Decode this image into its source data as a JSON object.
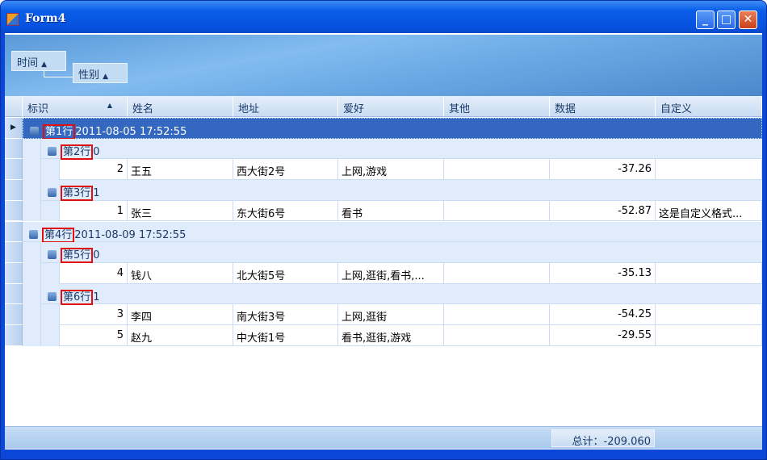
{
  "window": {
    "title": "Form4",
    "buttons": [
      "minimize",
      "maximize",
      "close"
    ]
  },
  "group_panel": {
    "chips": [
      {
        "label": "时间",
        "sort": "▲"
      },
      {
        "label": "性别",
        "sort": "▲"
      }
    ]
  },
  "columns": [
    {
      "label": "标识",
      "sort": "▲"
    },
    {
      "label": "姓名"
    },
    {
      "label": "地址"
    },
    {
      "label": "爱好"
    },
    {
      "label": "其他"
    },
    {
      "label": "数据"
    },
    {
      "label": "自定义"
    }
  ],
  "rows": [
    {
      "type": "group",
      "level": 1,
      "tag": "第1行",
      "value": "2011-08-05 17:52:55",
      "selected": true
    },
    {
      "type": "group",
      "level": 2,
      "tag": "第2行",
      "value": "0"
    },
    {
      "type": "data",
      "cells": [
        "2",
        "王五",
        "西大街2号",
        "上网,游戏",
        "",
        "-37.26",
        ""
      ]
    },
    {
      "type": "group",
      "level": 2,
      "tag": "第3行",
      "value": "1"
    },
    {
      "type": "data",
      "cells": [
        "1",
        "张三",
        "东大街6号",
        "看书",
        "",
        "-52.87",
        "这是自定义格式..."
      ]
    },
    {
      "type": "group",
      "level": 1,
      "tag": "第4行",
      "value": "2011-08-09 17:52:55"
    },
    {
      "type": "group",
      "level": 2,
      "tag": "第5行",
      "value": "0"
    },
    {
      "type": "data",
      "cells": [
        "4",
        "钱八",
        "北大街5号",
        "上网,逛街,看书,...",
        "",
        "-35.13",
        ""
      ]
    },
    {
      "type": "group",
      "level": 2,
      "tag": "第6行",
      "value": "1"
    },
    {
      "type": "data",
      "cells": [
        "3",
        "李四",
        "南大街3号",
        "上网,逛街",
        "",
        "-54.25",
        ""
      ]
    },
    {
      "type": "data",
      "cells": [
        "5",
        "赵九",
        "中大街1号",
        "看书,逛街,游戏",
        "",
        "-29.55",
        ""
      ]
    }
  ],
  "footer": {
    "total": "总计：-209.060"
  }
}
